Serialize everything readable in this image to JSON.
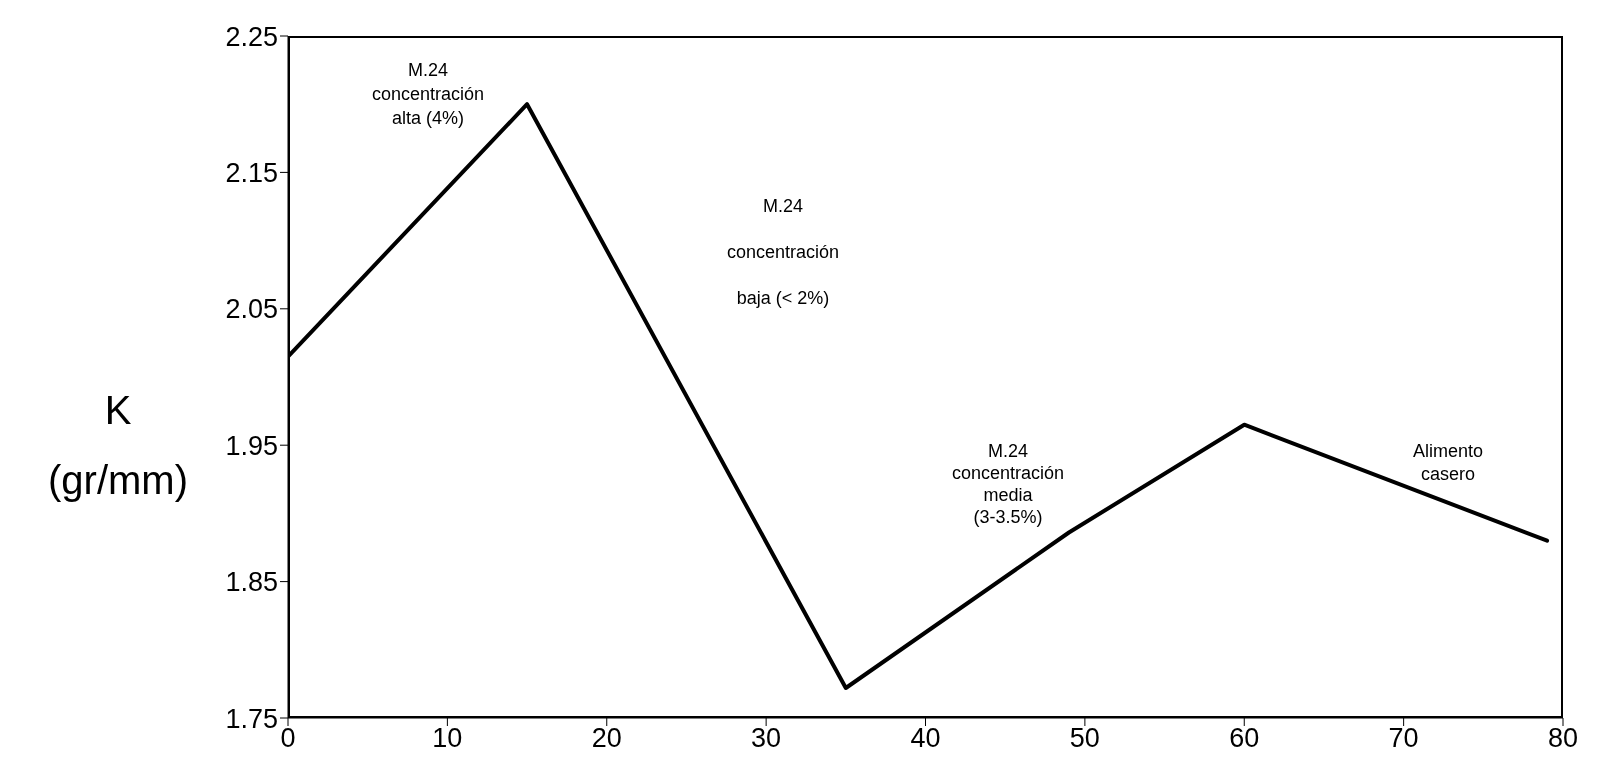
{
  "chart_data": {
    "type": "line",
    "ylabel": "K\n(gr/mm)",
    "x": [
      0,
      15,
      35,
      49,
      60,
      79
    ],
    "series": [
      {
        "color": "#000000",
        "values": [
          2.015,
          2.2,
          1.772,
          1.886,
          1.965,
          1.88
        ]
      }
    ],
    "xlim": [
      0,
      80
    ],
    "xticks": [
      0,
      10,
      20,
      30,
      40,
      50,
      60,
      70,
      80
    ],
    "ylim": [
      1.75,
      2.25
    ],
    "yticks": [
      1.75,
      1.85,
      1.95,
      2.05,
      2.15,
      2.25
    ],
    "grid": false,
    "legend": false,
    "marker": "none",
    "line_style": "solid",
    "annotations": [
      "M.24\nconcentración\nalta (4%)",
      "M.24\nconcentración\nbaja  (< 2%)",
      "M.24\nconcentración\nmedia\n(3-3.5%)",
      "Alimento\ncasero"
    ]
  }
}
